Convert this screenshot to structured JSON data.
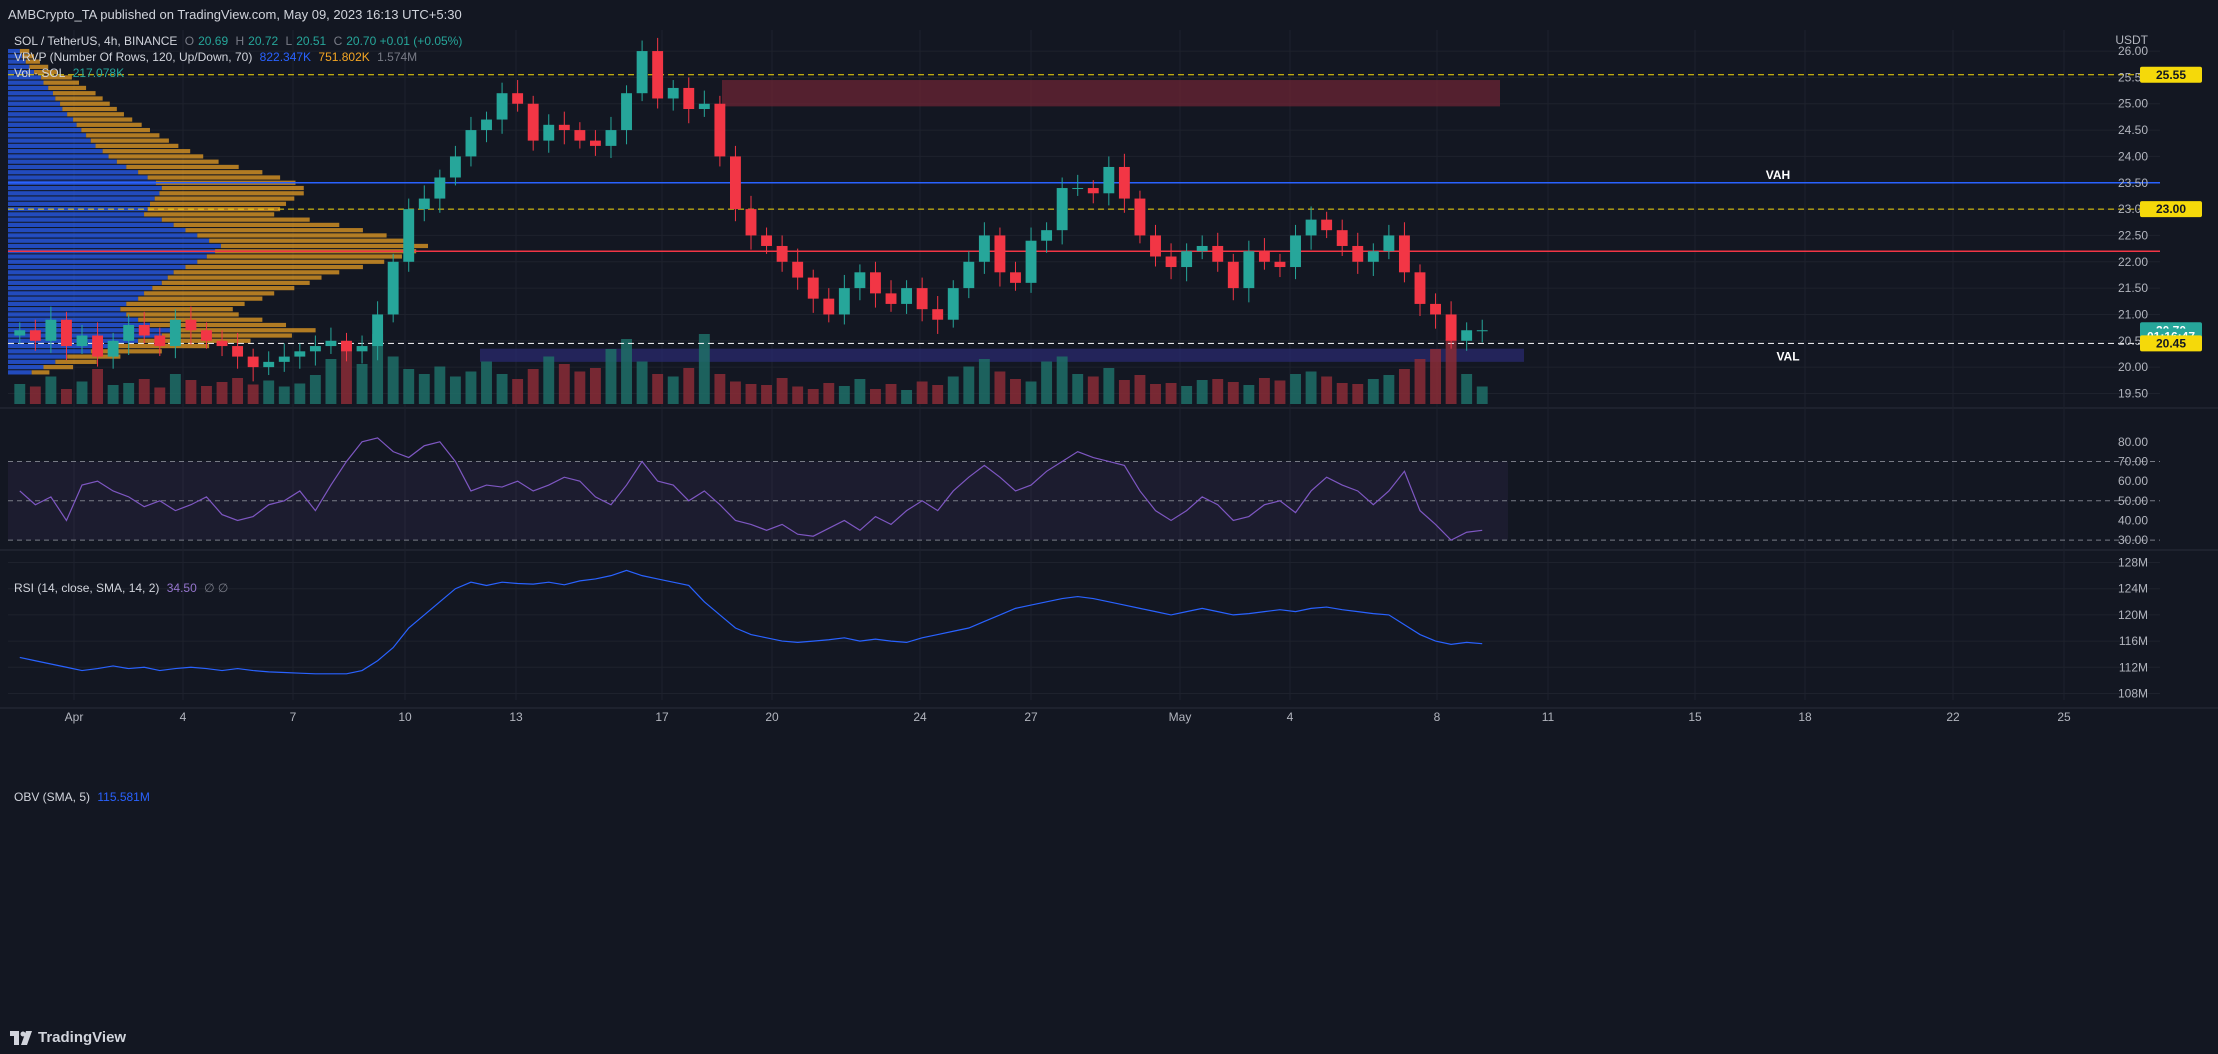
{
  "header": {
    "published": "AMBCrypto_TA published on TradingView.com, May 09, 2023 16:13 UTC+5:30"
  },
  "legend": {
    "symbol": "SOL / TetherUS, 4h, BINANCE",
    "o_label": "O",
    "o_value": "20.69",
    "h_label": "H",
    "h_value": "20.72",
    "l_label": "L",
    "l_value": "20.51",
    "c_label": "C",
    "c_value": "20.70 +0.01 (+0.05%)",
    "vrvp_label": "VRVP (Number Of Rows, 120, Up/Down, 70)",
    "vrvp_up": "822.347K",
    "vrvp_down": "751.802K",
    "vrvp_total": "1.574M",
    "vol_label": "Vol · SOL",
    "vol_value": "217.078K",
    "rsi_label": "RSI (14, close, SMA, 14, 2)",
    "rsi_value": "34.50",
    "rsi_extra": "∅ ∅",
    "obv_label": "OBV (SMA, 5)",
    "obv_value": "115.581M"
  },
  "footer": {
    "brand": "TradingView"
  },
  "chart_data": [
    {
      "type": "candlestick",
      "title": "SOL / TetherUS, 4h, BINANCE",
      "ylabel": "USDT",
      "ylim": [
        19.3,
        26.4
      ],
      "y_ticks": [
        "19.50",
        "20.00",
        "20.50",
        "21.00",
        "21.50",
        "22.00",
        "22.50",
        "23.00",
        "23.50",
        "24.00",
        "24.50",
        "25.00",
        "25.50",
        "26.00"
      ],
      "x_ticks": [
        "Apr",
        "4",
        "7",
        "10",
        "13",
        "17",
        "20",
        "24",
        "27",
        "May",
        "4",
        "8",
        "11",
        "15",
        "18",
        "22",
        "25"
      ],
      "price_labels": [
        {
          "value": "25.55",
          "price": 25.55,
          "style": "yellow"
        },
        {
          "value": "23.00",
          "price": 23.0,
          "style": "yellow"
        },
        {
          "value": "20.70",
          "price": 20.7,
          "style": "green"
        },
        {
          "value": "01:16:47",
          "price": 20.58,
          "style": "green"
        },
        {
          "value": "20.45",
          "price": 20.45,
          "style": "yellow"
        }
      ],
      "annotations": [
        {
          "text": "VAH",
          "price": 23.5
        },
        {
          "text": "VAL",
          "price": 20.05
        }
      ],
      "horizontal_lines": [
        {
          "price": 25.55,
          "color": "#f5d90a",
          "dash": true
        },
        {
          "price": 23.5,
          "color": "#2962ff",
          "dash": false
        },
        {
          "price": 23.0,
          "color": "#f5d90a",
          "dash": true
        },
        {
          "price": 22.2,
          "color": "#f23645",
          "dash": false
        },
        {
          "price": 20.45,
          "color": "#ffffff",
          "dash": true
        }
      ],
      "zones": [
        {
          "name": "supply-zone",
          "from_price": 24.95,
          "to_price": 25.45,
          "color": "#6b2434"
        },
        {
          "name": "demand-zone",
          "from_price": 20.1,
          "to_price": 20.35,
          "color": "#2a2a6e"
        }
      ],
      "path": [
        20.7,
        20.5,
        20.9,
        20.4,
        20.6,
        20.2,
        20.5,
        20.8,
        20.6,
        20.4,
        20.9,
        20.7,
        20.5,
        20.4,
        20.2,
        20.0,
        20.1,
        20.2,
        20.3,
        20.4,
        20.5,
        20.3,
        20.4,
        21.0,
        22.0,
        23.0,
        23.2,
        23.6,
        24.0,
        24.5,
        24.7,
        25.2,
        25.0,
        24.3,
        24.6,
        24.5,
        24.3,
        24.2,
        24.5,
        25.2,
        26.0,
        25.1,
        25.3,
        24.9,
        25.0,
        24.0,
        23.0,
        22.5,
        22.3,
        22.0,
        21.7,
        21.3,
        21.0,
        21.5,
        21.8,
        21.4,
        21.2,
        21.5,
        21.1,
        20.9,
        21.5,
        22.0,
        22.5,
        21.8,
        21.6,
        22.4,
        22.6,
        23.4,
        23.4,
        23.3,
        23.8,
        23.2,
        22.5,
        22.1,
        21.9,
        22.2,
        22.3,
        22.0,
        21.5,
        22.2,
        22.0,
        21.9,
        22.5,
        22.8,
        22.6,
        22.3,
        22.0,
        22.2,
        22.5,
        21.8,
        21.2,
        21.0,
        20.5,
        20.7,
        20.7
      ],
      "volumes": [
        40,
        35,
        55,
        30,
        45,
        70,
        38,
        42,
        50,
        33,
        60,
        48,
        36,
        44,
        52,
        39,
        47,
        35,
        41,
        58,
        90,
        120,
        80,
        140,
        95,
        70,
        60,
        75,
        55,
        65,
        85,
        60,
        50,
        70,
        95,
        80,
        65,
        72,
        110,
        130,
        85,
        60,
        55,
        72,
        140,
        60,
        45,
        40,
        38,
        52,
        35,
        30,
        42,
        36,
        50,
        30,
        40,
        28,
        45,
        38,
        55,
        75,
        90,
        65,
        50,
        45,
        85,
        95,
        60,
        55,
        72,
        48,
        58,
        40,
        42,
        36,
        48,
        50,
        44,
        38,
        52,
        47,
        60,
        65,
        55,
        42,
        40,
        50,
        58,
        70,
        90,
        110,
        130,
        60,
        35
      ],
      "volume_profile": {
        "levels": [
          26.0,
          25.9,
          25.8,
          25.7,
          25.6,
          25.5,
          25.4,
          25.3,
          25.2,
          25.1,
          25.0,
          24.9,
          24.8,
          24.7,
          24.6,
          24.5,
          24.4,
          24.3,
          24.2,
          24.1,
          24.0,
          23.9,
          23.8,
          23.7,
          23.6,
          23.5,
          23.4,
          23.3,
          23.2,
          23.1,
          23.0,
          22.9,
          22.8,
          22.7,
          22.6,
          22.5,
          22.4,
          22.3,
          22.2,
          22.1,
          22.0,
          21.9,
          21.8,
          21.7,
          21.6,
          21.5,
          21.4,
          21.3,
          21.2,
          21.1,
          21.0,
          20.9,
          20.8,
          20.7,
          20.6,
          20.5,
          20.4,
          20.3,
          20.2,
          20.1,
          20.0,
          19.9
        ],
        "up": [
          10,
          12,
          15,
          18,
          22,
          28,
          30,
          34,
          38,
          40,
          44,
          46,
          50,
          55,
          58,
          62,
          66,
          70,
          74,
          80,
          85,
          92,
          100,
          110,
          118,
          125,
          130,
          128,
          124,
          120,
          118,
          115,
          130,
          140,
          150,
          160,
          170,
          180,
          175,
          168,
          160,
          150,
          140,
          135,
          130,
          122,
          115,
          110,
          100,
          95,
          100,
          110,
          120,
          140,
          130,
          110,
          90,
          70,
          50,
          40,
          30,
          20
        ],
        "down": [
          8,
          10,
          12,
          16,
          20,
          26,
          30,
          32,
          36,
          40,
          42,
          46,
          48,
          50,
          55,
          58,
          62,
          66,
          70,
          74,
          80,
          86,
          95,
          105,
          112,
          118,
          120,
          122,
          118,
          115,
          112,
          110,
          125,
          140,
          150,
          160,
          168,
          175,
          170,
          165,
          158,
          150,
          140,
          130,
          125,
          120,
          110,
          105,
          100,
          95,
          95,
          105,
          115,
          120,
          110,
          95,
          80,
          60,
          45,
          35,
          25,
          15
        ]
      }
    },
    {
      "type": "line",
      "title": "RSI (14, close, SMA, 14, 2)",
      "ylim": [
        26,
        86
      ],
      "y_ticks": [
        "30.00",
        "40.00",
        "50.00",
        "60.00",
        "70.00",
        "80.00"
      ],
      "bands": [
        30,
        50,
        70
      ],
      "values": [
        55,
        48,
        52,
        40,
        58,
        60,
        55,
        52,
        47,
        50,
        45,
        48,
        52,
        43,
        40,
        42,
        48,
        50,
        55,
        45,
        58,
        70,
        80,
        82,
        75,
        72,
        78,
        80,
        70,
        55,
        58,
        57,
        60,
        55,
        58,
        62,
        60,
        52,
        48,
        58,
        70,
        60,
        58,
        50,
        55,
        48,
        40,
        38,
        35,
        38,
        33,
        32,
        36,
        40,
        35,
        42,
        38,
        45,
        50,
        45,
        55,
        62,
        68,
        62,
        55,
        58,
        65,
        70,
        75,
        72,
        70,
        68,
        55,
        45,
        40,
        45,
        52,
        48,
        40,
        42,
        48,
        50,
        44,
        55,
        62,
        58,
        55,
        48,
        55,
        65,
        45,
        38,
        30,
        34,
        35
      ]
    },
    {
      "type": "line",
      "title": "OBV (SMA, 5)",
      "ylim": [
        107,
        129
      ],
      "y_ticks": [
        "108M",
        "112M",
        "116M",
        "120M",
        "124M",
        "128M"
      ],
      "values": [
        113.5,
        113,
        112.5,
        112,
        111.5,
        111.8,
        112.2,
        111.8,
        112,
        111.5,
        111.8,
        112,
        111.8,
        111.5,
        111.8,
        111.5,
        111.3,
        111.2,
        111.1,
        111,
        111,
        111,
        111.5,
        113,
        115,
        118,
        120,
        122,
        124,
        125,
        124.5,
        125,
        124.8,
        124.7,
        125,
        124.6,
        125.2,
        125.5,
        126,
        126.8,
        126,
        125.5,
        125,
        124.5,
        122,
        120,
        118,
        117,
        116.5,
        116,
        115.8,
        116,
        116.2,
        116.5,
        116,
        116.3,
        116,
        115.8,
        116.5,
        117,
        117.5,
        118,
        119,
        120,
        121,
        121.5,
        122,
        122.5,
        122.8,
        122.5,
        122,
        121.5,
        121,
        120.5,
        120,
        120.5,
        121,
        120.5,
        120,
        120.2,
        120.5,
        120.8,
        120.5,
        121,
        121.2,
        120.8,
        120.5,
        120.2,
        120,
        118.5,
        117,
        116,
        115.5,
        115.8,
        115.6
      ]
    }
  ]
}
